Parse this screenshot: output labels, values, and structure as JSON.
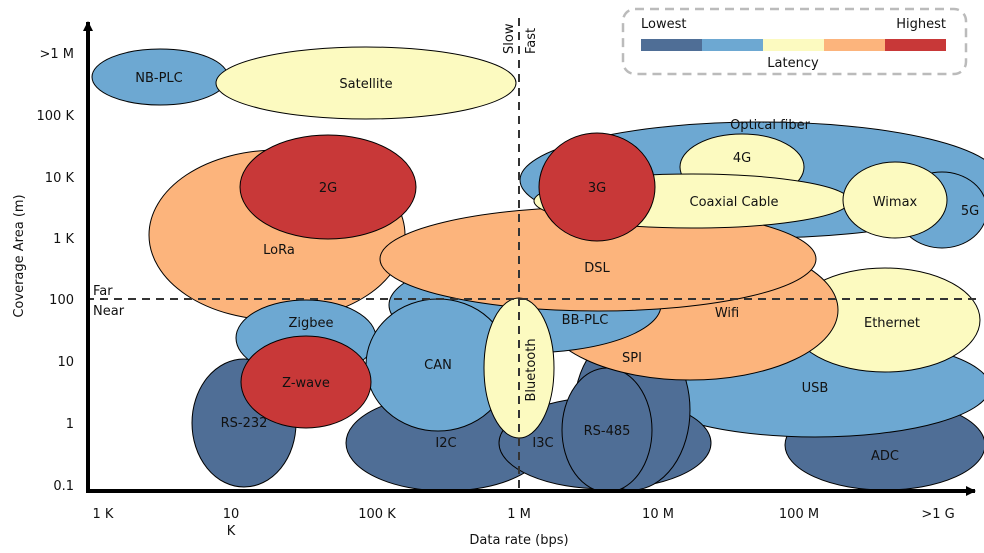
{
  "axes": {
    "x_label": "Data rate (bps)",
    "y_label": "Coverage Area (m)",
    "x_ticks": [
      "1 K",
      "10",
      "K",
      "100 K",
      "1 M",
      "10 M",
      "100 M",
      ">1 G"
    ],
    "y_ticks": [
      ">1 M",
      "100 K",
      "10 K",
      "1 K",
      "100",
      "10",
      "1",
      "0.1"
    ]
  },
  "dividers": {
    "slow": "Slow",
    "fast": "Fast",
    "far": "Far",
    "near": "Near"
  },
  "legend": {
    "lowest": "Lowest",
    "highest": "Highest",
    "title": "Latency",
    "colors": [
      "#4f6e96",
      "#6da8d2",
      "#fcfac0",
      "#fcb47c",
      "#c83838"
    ]
  },
  "technologies": {
    "adc": "ADC",
    "usb": "USB",
    "optical_fiber": "Optical fiber",
    "g5": "5G",
    "i2c": "I2C",
    "i3c": "I3C",
    "rs232": "RS-232",
    "spi": "SPI",
    "rs485": "RS-485",
    "lora": "LoRa",
    "ethernet": "Ethernet",
    "wifi": "Wifi",
    "bbplc": "BB-PLC",
    "dsl": "DSL",
    "zigbee": "Zigbee",
    "can": "CAN",
    "bluetooth": "Bluetooth",
    "nbplc": "NB-PLC",
    "satellite": "Satellite",
    "g4": "4G",
    "coaxial": "Coaxial Cable",
    "wimax": "Wimax",
    "g3": "3G",
    "g2": "2G",
    "zwave": "Z-wave"
  }
}
